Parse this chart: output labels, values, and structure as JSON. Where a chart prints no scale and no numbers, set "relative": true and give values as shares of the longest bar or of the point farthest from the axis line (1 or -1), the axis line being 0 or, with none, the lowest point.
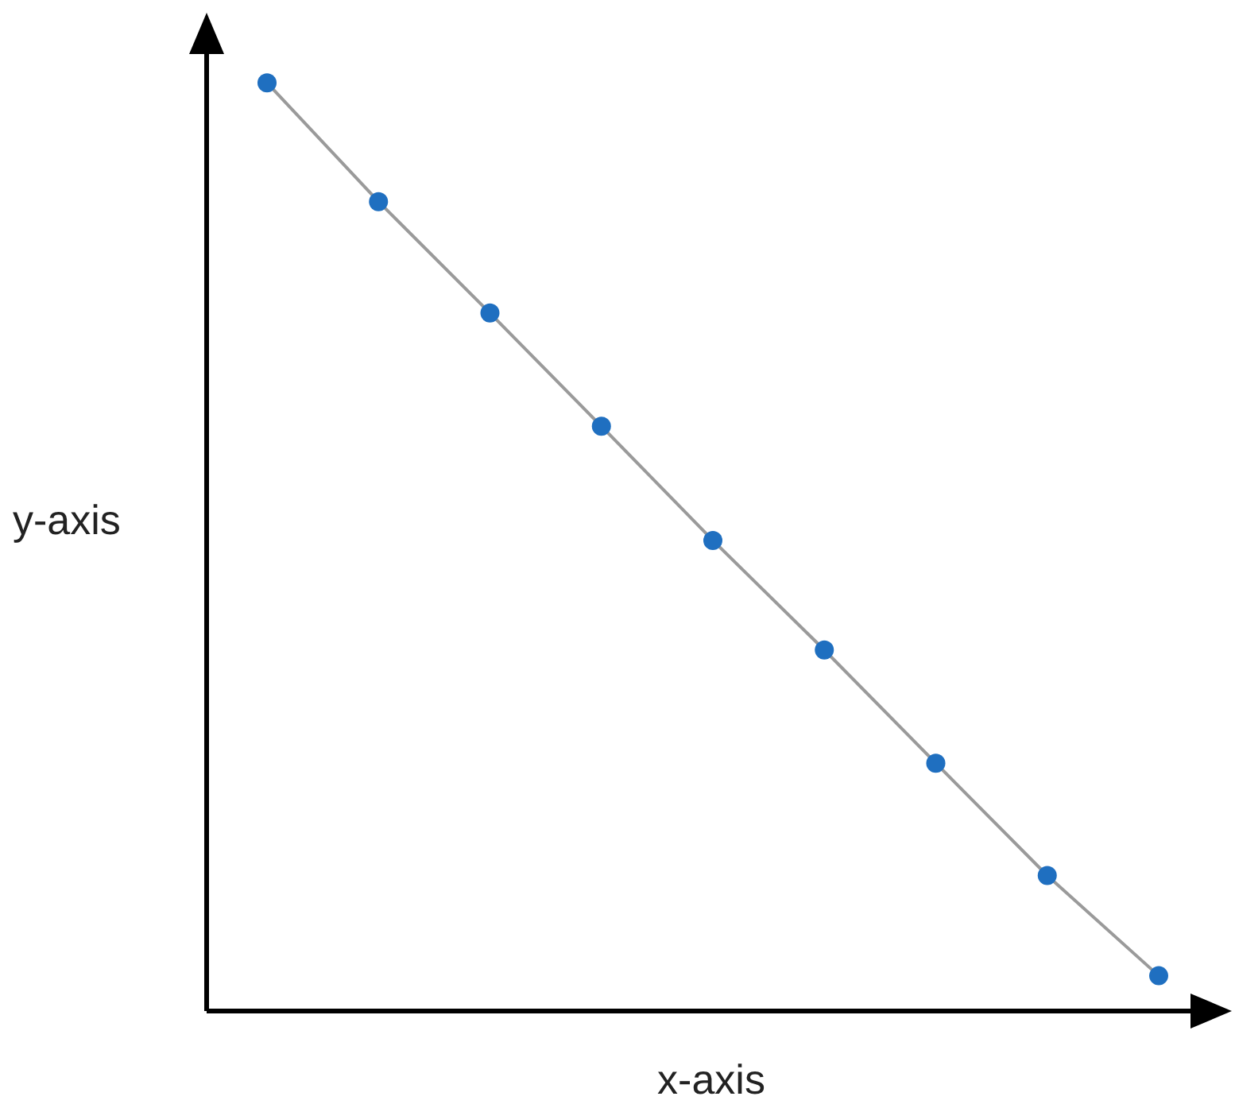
{
  "chart_data": {
    "type": "line",
    "xlabel": "x-axis",
    "ylabel": "y-axis",
    "relative": true,
    "tick_labels": false,
    "marker": "circle",
    "categories": [
      null,
      null,
      null,
      null,
      null,
      null,
      null,
      null,
      null
    ],
    "series": [
      {
        "color": "#9a9a9a",
        "values": [
          1,
          0.872,
          0.752,
          0.63,
          0.507,
          0.389,
          0.267,
          0.146,
          0.038
        ]
      }
    ]
  }
}
